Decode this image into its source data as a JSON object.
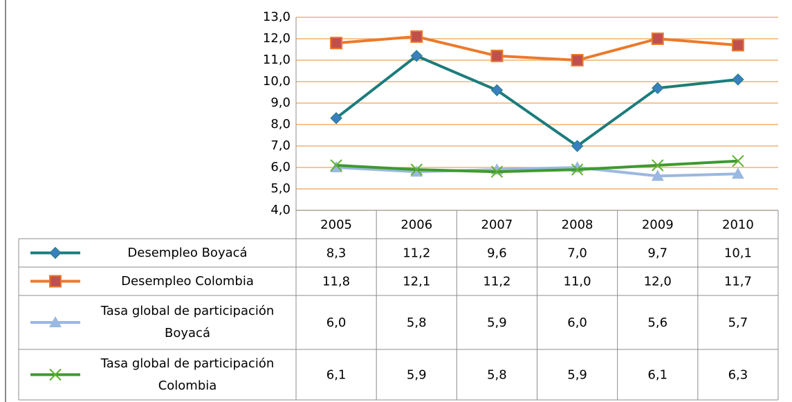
{
  "chart_data": {
    "type": "line",
    "categories": [
      "2005",
      "2006",
      "2007",
      "2008",
      "2009",
      "2010"
    ],
    "series": [
      {
        "name": "Desempleo Boyacá",
        "color": "#1b7c7c",
        "marker": "diamond",
        "marker_color": "#3a7fc0",
        "values": [
          8.3,
          11.2,
          9.6,
          7.0,
          9.7,
          10.1
        ],
        "value_labels": [
          "8,3",
          "11,2",
          "9,6",
          "7,0",
          "9,7",
          "10,1"
        ]
      },
      {
        "name": "Desempleo Colombia",
        "color": "#ec7a2a",
        "marker": "square",
        "marker_color": "#c0504d",
        "values": [
          11.8,
          12.1,
          11.2,
          11.0,
          12.0,
          11.7
        ],
        "value_labels": [
          "11,8",
          "12,1",
          "11,2",
          "11,0",
          "12,0",
          "11,7"
        ]
      },
      {
        "name": "Tasa global de participación Boyacá",
        "color": "#9ab8e0",
        "marker": "triangle",
        "marker_color": "#9ab8e0",
        "values": [
          6.0,
          5.8,
          5.9,
          6.0,
          5.6,
          5.7
        ],
        "value_labels": [
          "6,0",
          "5,8",
          "5,9",
          "6,0",
          "5,6",
          "5,7"
        ]
      },
      {
        "name": "Tasa global de participación Colombia",
        "color": "#3e9a2e",
        "marker": "x",
        "marker_color": "#5cb030",
        "values": [
          6.1,
          5.9,
          5.8,
          5.9,
          6.1,
          6.3
        ],
        "value_labels": [
          "6,1",
          "5,9",
          "5,8",
          "5,9",
          "6,1",
          "6,3"
        ]
      }
    ],
    "ylim": [
      4,
      13
    ],
    "yticks": [
      {
        "value": 4,
        "label": "4,0"
      },
      {
        "value": 5,
        "label": "5,0"
      },
      {
        "value": 6,
        "label": "6,0"
      },
      {
        "value": 7,
        "label": "7,0"
      },
      {
        "value": 8,
        "label": "8,0"
      },
      {
        "value": 9,
        "label": "9,0"
      },
      {
        "value": 10,
        "label": "10,0"
      },
      {
        "value": 11,
        "label": "11,0"
      },
      {
        "value": 12,
        "label": "12,0"
      },
      {
        "value": 13,
        "label": "13,0"
      }
    ],
    "grid": true
  }
}
